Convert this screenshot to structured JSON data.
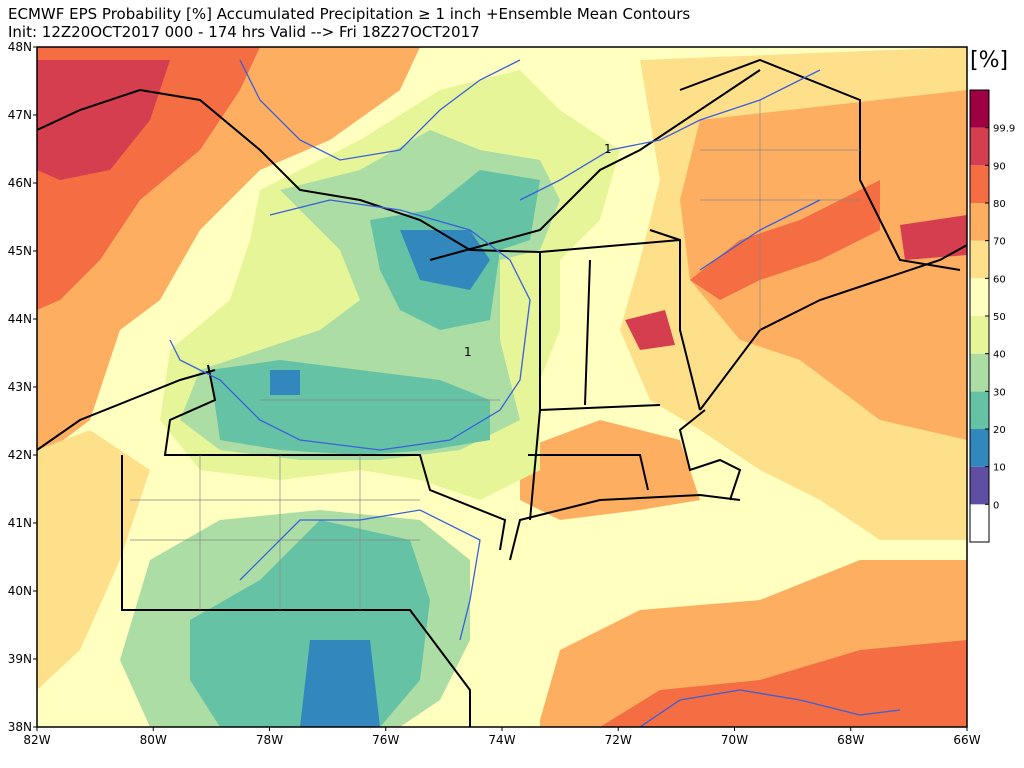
{
  "header": {
    "title": "ECMWF EPS Probability [%] Accumulated Precipitation ≥ 1 inch   +Ensemble Mean Contours",
    "subtitle": "Init: 12Z20OCT2017   000 - 174 hrs Valid --> Fri 18Z27OCT2017"
  },
  "map": {
    "lon_labels": [
      "82W",
      "80W",
      "78W",
      "76W",
      "74W",
      "72W",
      "70W",
      "68W",
      "66W"
    ],
    "lat_labels": [
      "48N",
      "47N",
      "46N",
      "45N",
      "44N",
      "43N",
      "42N",
      "41N",
      "40N",
      "39N",
      "38N"
    ],
    "contour_labels": [
      "1",
      "1"
    ]
  },
  "colorbar": {
    "label": "[%]",
    "ticks": [
      0,
      10,
      20,
      30,
      40,
      50,
      60,
      70,
      80,
      90,
      99.9
    ],
    "colors": [
      "#ffffff",
      "#5e4fa2",
      "#3288bd",
      "#66c2a5",
      "#abdda4",
      "#e6f598",
      "#ffffbf",
      "#fee08b",
      "#fdae61",
      "#f46d43",
      "#d53e4f",
      "#9e0142"
    ]
  }
}
